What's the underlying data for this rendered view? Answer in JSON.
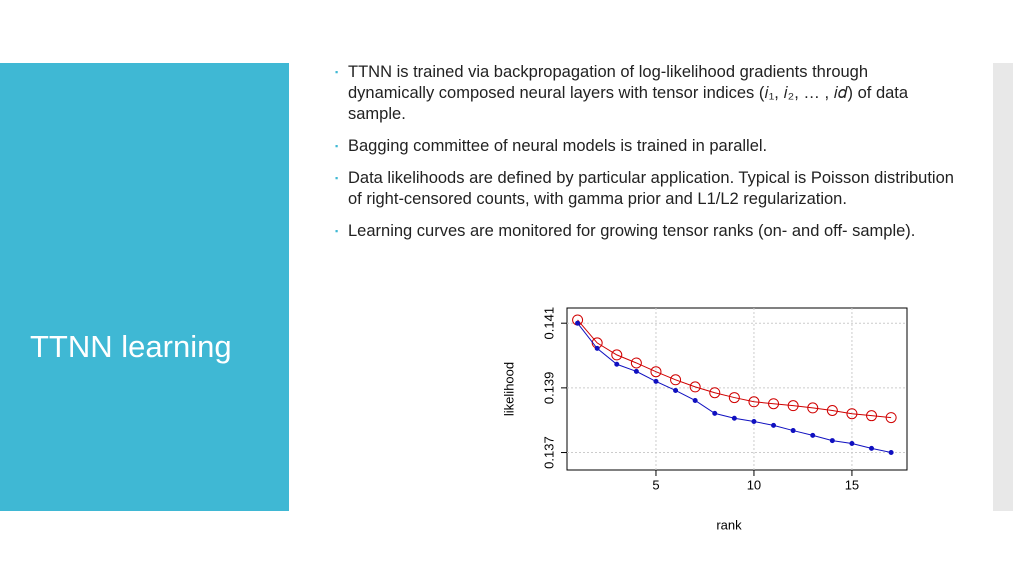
{
  "slide": {
    "title": "TTNN learning",
    "bullets": [
      "TTNN is trained via backpropagation of log-likelihood gradients through dynamically composed neural layers with tensor indices (𝑖₁, 𝑖₂, … , 𝑖𝑑) of data sample.",
      "Bagging committee of neural models is trained in parallel.",
      "Data likelihoods are defined by particular application. Typical is Poisson distribution of right-censored counts, with gamma prior and L1/L2 regularization.",
      "Learning curves are monitored for growing tensor ranks (on- and off- sample)."
    ]
  },
  "chart_data": {
    "type": "line",
    "xlabel": "rank",
    "ylabel": "likelihood",
    "x": [
      1,
      2,
      3,
      4,
      5,
      6,
      7,
      8,
      9,
      10,
      11,
      12,
      13,
      14,
      15,
      16,
      17
    ],
    "series": [
      {
        "color": "#d00000",
        "marker": "circle",
        "values": [
          0.1411,
          0.14039,
          0.14002,
          0.13977,
          0.1395,
          0.13925,
          0.13903,
          0.13885,
          0.1387,
          0.13857,
          0.13851,
          0.13845,
          0.13838,
          0.1383,
          0.1382,
          0.13814,
          0.13808
        ]
      },
      {
        "color": "#1010c0",
        "marker": "dot",
        "values": [
          0.141,
          0.14022,
          0.13973,
          0.13951,
          0.1392,
          0.13892,
          0.13861,
          0.13821,
          0.13806,
          0.13796,
          0.13784,
          0.13768,
          0.13753,
          0.13737,
          0.13728,
          0.13713,
          0.137
        ]
      }
    ],
    "xlim": [
      0.46,
      17.81
    ],
    "ylim": [
      0.13646,
      0.14147
    ],
    "xticks": [
      5,
      10,
      15
    ],
    "yticks": [
      0.137,
      0.139,
      0.141
    ],
    "grid": true
  }
}
